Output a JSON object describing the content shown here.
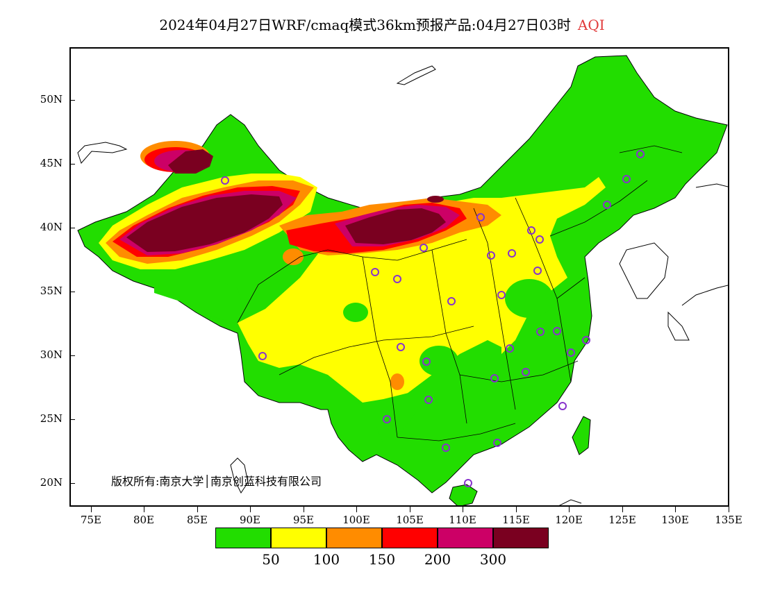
{
  "header": {
    "title": "2024年04月27日WRF/cmaq模式36km预报产品:04月27日03时",
    "variable": "AQI"
  },
  "map": {
    "lat_labels": [
      "50N",
      "45N",
      "40N",
      "35N",
      "30N",
      "25N",
      "20N"
    ],
    "lon_labels": [
      "75E",
      "80E",
      "85E",
      "90E",
      "95E",
      "100E",
      "105E",
      "110E",
      "115E",
      "120E",
      "125E",
      "130E",
      "135E"
    ],
    "lon_range": [
      73,
      135
    ],
    "lat_range": [
      18,
      54
    ]
  },
  "copyright": "版权所有:南京大学│南京创蓝科技有限公司",
  "legend": {
    "colors": [
      "#22dd00",
      "#ffff00",
      "#ff8c00",
      "#ff0000",
      "#cc0066",
      "#7a0020"
    ],
    "labels": [
      "50",
      "100",
      "150",
      "200",
      "300"
    ]
  }
}
